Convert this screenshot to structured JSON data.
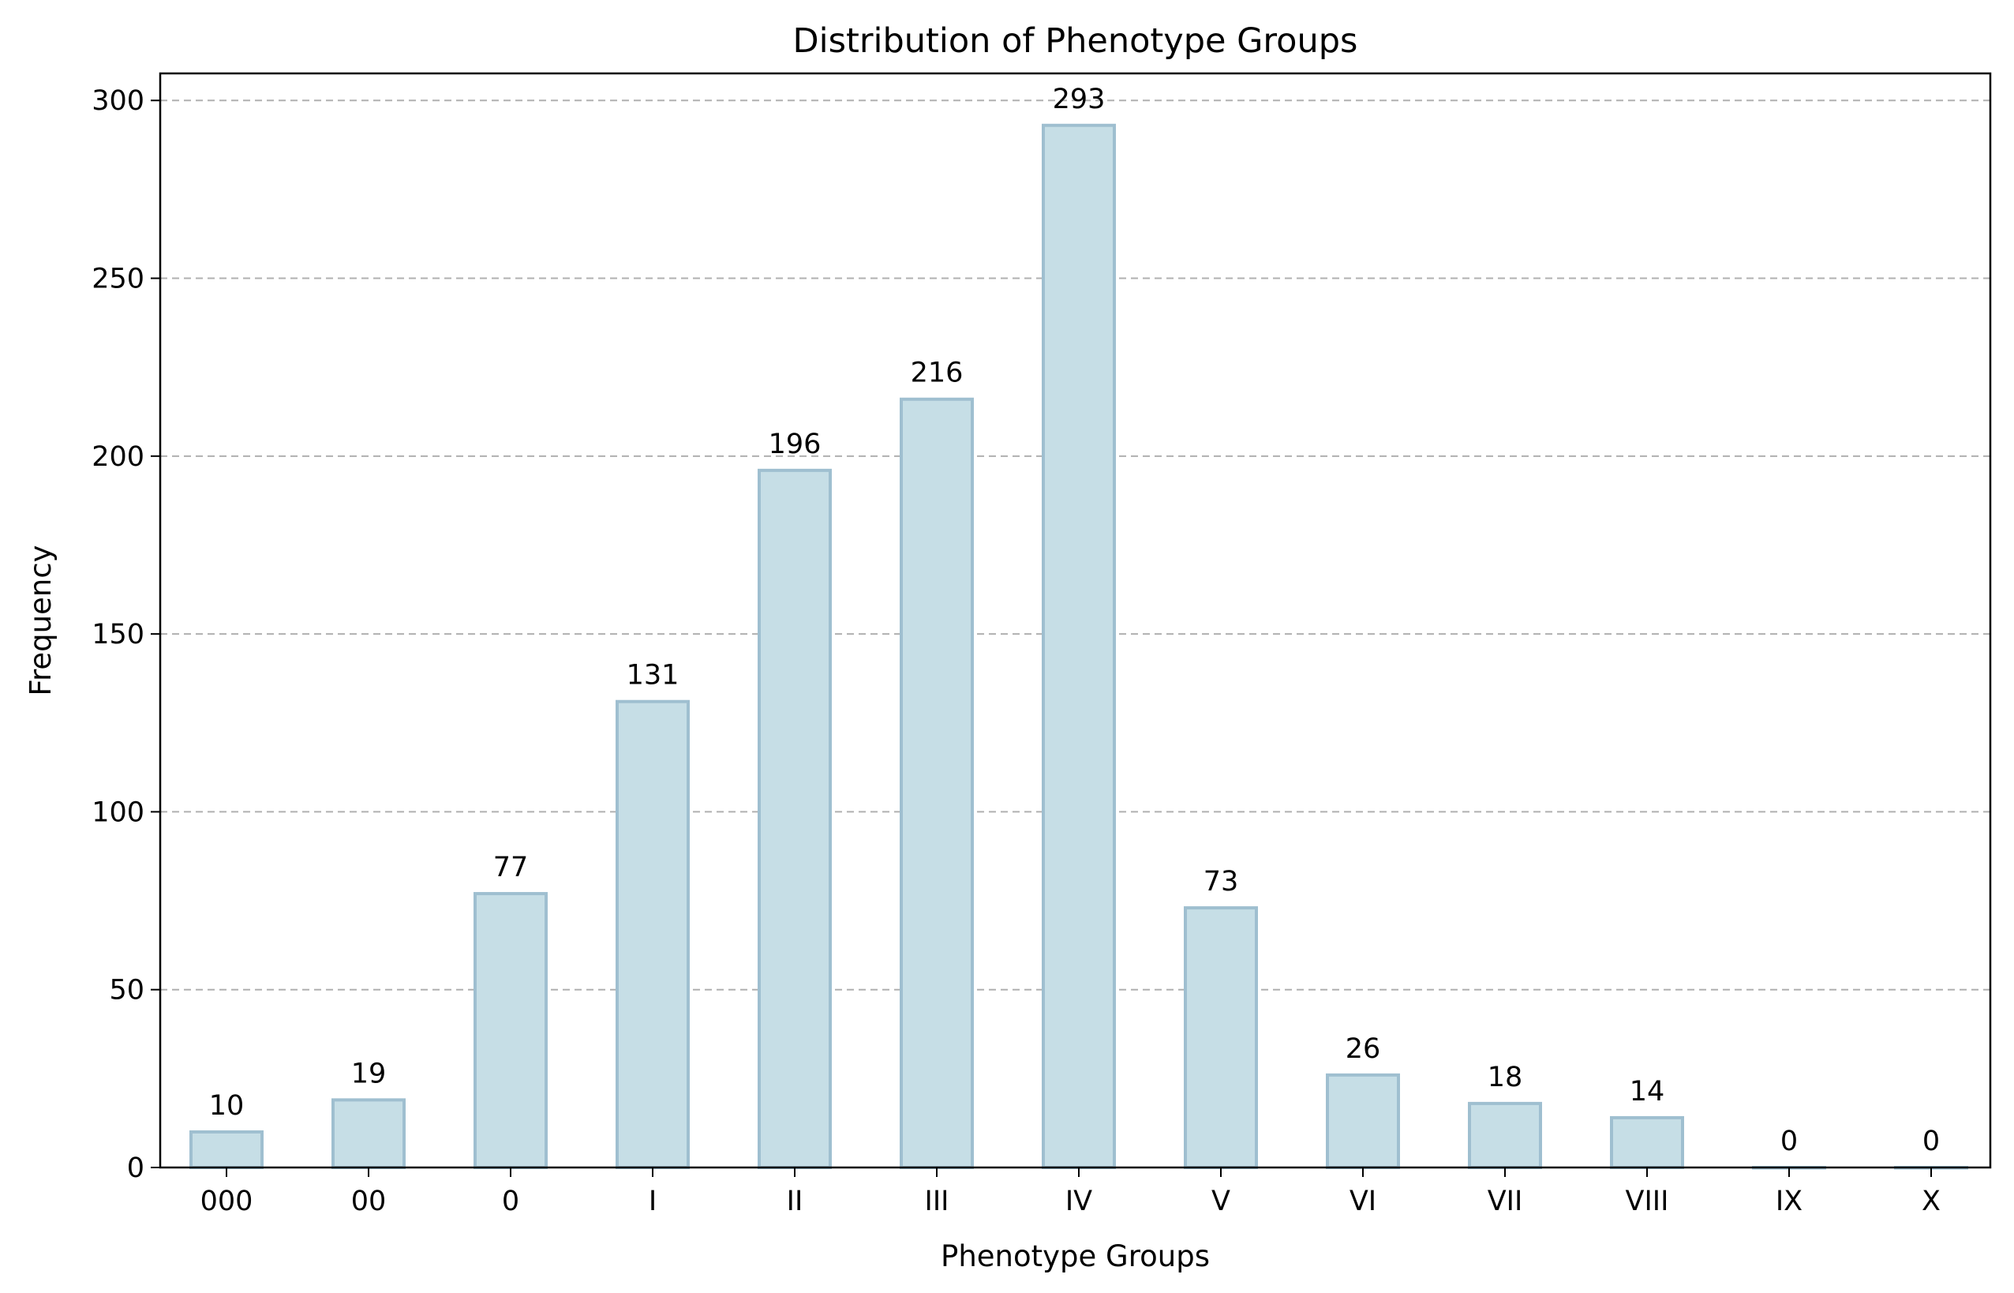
{
  "chart_data": {
    "type": "bar",
    "title": "Distribution of Phenotype Groups",
    "xlabel": "Phenotype Groups",
    "ylabel": "Frequency",
    "categories": [
      "000",
      "00",
      "0",
      "I",
      "II",
      "III",
      "IV",
      "V",
      "VI",
      "VII",
      "VIII",
      "IX",
      "X"
    ],
    "values": [
      10,
      19,
      77,
      131,
      196,
      216,
      293,
      73,
      26,
      18,
      14,
      0,
      0
    ],
    "ylim": [
      0,
      307.6
    ],
    "yticks": [
      0,
      50,
      100,
      150,
      200,
      250,
      300
    ],
    "grid": "horizontal-dashed",
    "legend": "none",
    "colors": {
      "bar_fill": "#c6dee6",
      "bar_edge": "#9fbfd0",
      "grid": "#b0b0b0",
      "text": "#000000"
    }
  }
}
